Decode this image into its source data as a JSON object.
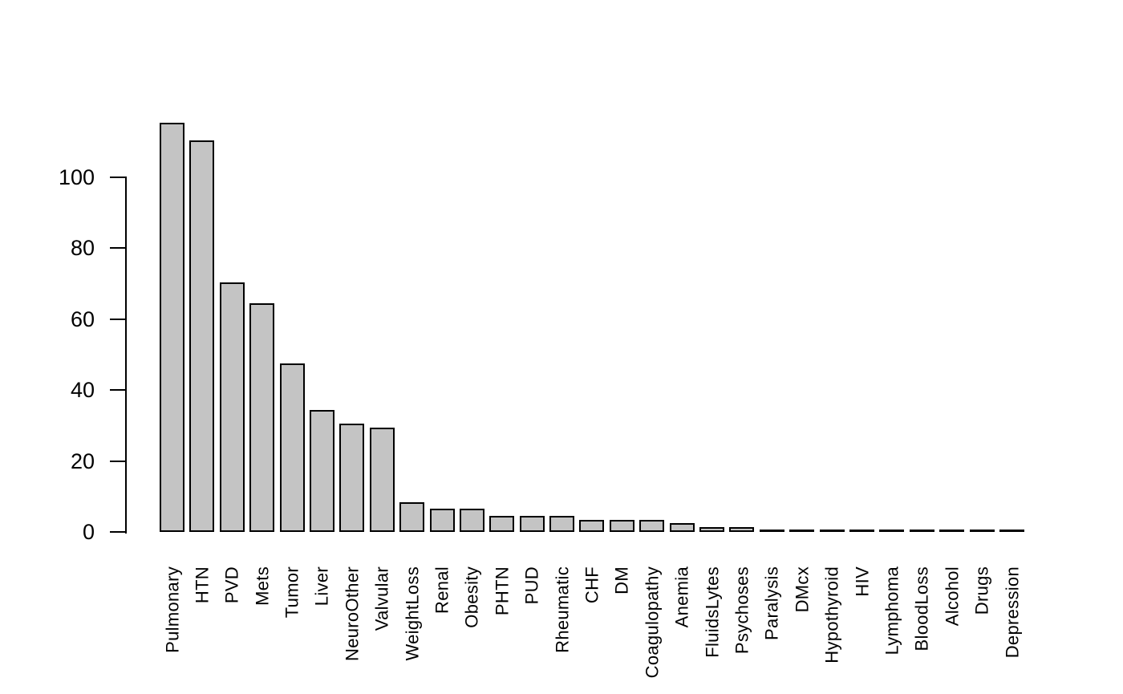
{
  "chart_data": {
    "type": "bar",
    "title": "",
    "xlabel": "",
    "ylabel": "",
    "categories": [
      "Pulmonary",
      "HTN",
      "PVD",
      "Mets",
      "Tumor",
      "Liver",
      "NeuroOther",
      "Valvular",
      "WeightLoss",
      "Renal",
      "Obesity",
      "PHTN",
      "PUD",
      "Rheumatic",
      "CHF",
      "DM",
      "Coagulopathy",
      "Anemia",
      "FluidsLytes",
      "Psychoses",
      "Paralysis",
      "DMcx",
      "Hypothyroid",
      "HIV",
      "Lymphoma",
      "BloodLoss",
      "Alcohol",
      "Drugs",
      "Depression"
    ],
    "values": [
      115,
      110,
      70,
      64,
      47,
      34,
      30,
      29,
      8,
      6,
      6,
      4,
      4,
      4,
      3,
      3,
      3,
      2,
      1,
      1,
      0,
      0,
      0,
      0,
      0,
      0,
      0,
      0,
      0
    ],
    "yticks": [
      0,
      20,
      40,
      60,
      80,
      100
    ],
    "ylim": [
      0,
      117
    ],
    "x_tick_rotation": 90,
    "grid": false,
    "legend_position": "none",
    "bar_fill": "#C4C4C4",
    "bar_border": "#000000",
    "axis_color": "#000000",
    "background": "#FFFFFF"
  }
}
